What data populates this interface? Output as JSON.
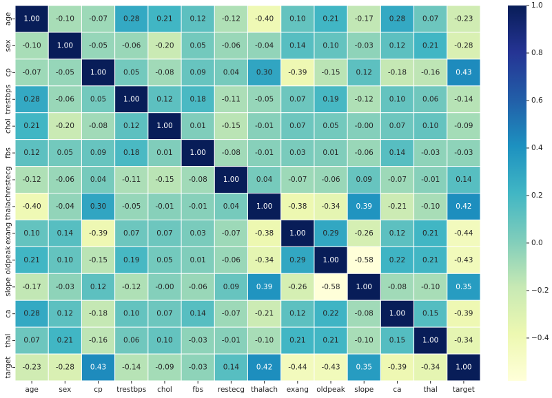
{
  "chart_data": {
    "type": "heatmap",
    "x_categories": [
      "age",
      "sex",
      "cp",
      "trestbps",
      "chol",
      "fbs",
      "restecg",
      "thalach",
      "exang",
      "oldpeak",
      "slope",
      "ca",
      "thal",
      "target"
    ],
    "y_categories": [
      "age",
      "sex",
      "cp",
      "trestbps",
      "chol",
      "fbs",
      "restecg",
      "thalach",
      "exang",
      "oldpeak",
      "slope",
      "ca",
      "thal",
      "target"
    ],
    "values": [
      [
        1,
        -0.1,
        -0.07,
        0.28,
        0.21,
        0.12,
        -0.12,
        -0.4,
        0.1,
        0.21,
        -0.17,
        0.28,
        0.07,
        -0.23
      ],
      [
        -0.1,
        1,
        -0.05,
        -0.06,
        -0.2,
        0.05,
        -0.06,
        -0.04,
        0.14,
        0.1,
        -0.03,
        0.12,
        0.21,
        -0.28
      ],
      [
        -0.07,
        -0.05,
        1,
        0.05,
        -0.08,
        0.09,
        0.04,
        0.3,
        -0.39,
        -0.15,
        0.12,
        -0.18,
        -0.16,
        0.43
      ],
      [
        0.28,
        -0.06,
        0.05,
        1,
        0.12,
        0.18,
        -0.11,
        -0.05,
        0.07,
        0.19,
        -0.12,
        0.1,
        0.06,
        -0.14
      ],
      [
        0.21,
        -0.2,
        -0.08,
        0.12,
        1,
        0.01,
        -0.15,
        -0.01,
        0.07,
        0.05,
        0,
        0.07,
        0.1,
        -0.09
      ],
      [
        0.12,
        0.05,
        0.09,
        0.18,
        0.01,
        1,
        -0.08,
        -0.01,
        0.03,
        0.01,
        -0.06,
        0.14,
        -0.03,
        -0.03
      ],
      [
        -0.12,
        -0.06,
        0.04,
        -0.11,
        -0.15,
        -0.08,
        1,
        0.04,
        -0.07,
        -0.06,
        0.09,
        -0.07,
        -0.01,
        0.14
      ],
      [
        -0.4,
        -0.04,
        0.3,
        -0.05,
        -0.01,
        -0.01,
        0.04,
        1,
        -0.38,
        -0.34,
        0.39,
        -0.21,
        -0.1,
        0.42
      ],
      [
        0.1,
        0.14,
        -0.39,
        0.07,
        0.07,
        0.03,
        -0.07,
        -0.38,
        1,
        0.29,
        -0.26,
        0.12,
        0.21,
        -0.44
      ],
      [
        0.21,
        0.1,
        -0.15,
        0.19,
        0.05,
        0.01,
        -0.06,
        -0.34,
        0.29,
        1,
        -0.58,
        0.22,
        0.21,
        -0.43
      ],
      [
        -0.17,
        -0.03,
        0.12,
        -0.12,
        0,
        -0.06,
        0.09,
        0.39,
        -0.26,
        -0.58,
        1,
        -0.08,
        -0.1,
        0.35
      ],
      [
        0.28,
        0.12,
        -0.18,
        0.1,
        0.07,
        0.14,
        -0.07,
        -0.21,
        0.12,
        0.22,
        -0.08,
        1,
        0.15,
        -0.39
      ],
      [
        0.07,
        0.21,
        -0.16,
        0.06,
        0.1,
        -0.03,
        -0.01,
        -0.1,
        0.21,
        0.21,
        -0.1,
        0.15,
        1,
        -0.34
      ],
      [
        -0.23,
        -0.28,
        0.43,
        -0.14,
        -0.09,
        -0.03,
        0.14,
        0.42,
        -0.44,
        -0.43,
        0.35,
        -0.39,
        -0.34,
        1
      ]
    ],
    "value_labels": [
      [
        "1.00",
        "-0.10",
        "-0.07",
        "0.28",
        "0.21",
        "0.12",
        "-0.12",
        "-0.40",
        "0.10",
        "0.21",
        "-0.17",
        "0.28",
        "0.07",
        "-0.23"
      ],
      [
        "-0.10",
        "1.00",
        "-0.05",
        "-0.06",
        "-0.20",
        "0.05",
        "-0.06",
        "-0.04",
        "0.14",
        "0.10",
        "-0.03",
        "0.12",
        "0.21",
        "-0.28"
      ],
      [
        "-0.07",
        "-0.05",
        "1.00",
        "0.05",
        "-0.08",
        "0.09",
        "0.04",
        "0.30",
        "-0.39",
        "-0.15",
        "0.12",
        "-0.18",
        "-0.16",
        "0.43"
      ],
      [
        "0.28",
        "-0.06",
        "0.05",
        "1.00",
        "0.12",
        "0.18",
        "-0.11",
        "-0.05",
        "0.07",
        "0.19",
        "-0.12",
        "0.10",
        "0.06",
        "-0.14"
      ],
      [
        "0.21",
        "-0.20",
        "-0.08",
        "0.12",
        "1.00",
        "0.01",
        "-0.15",
        "-0.01",
        "0.07",
        "0.05",
        "-0.00",
        "0.07",
        "0.10",
        "-0.09"
      ],
      [
        "0.12",
        "0.05",
        "0.09",
        "0.18",
        "0.01",
        "1.00",
        "-0.08",
        "-0.01",
        "0.03",
        "0.01",
        "-0.06",
        "0.14",
        "-0.03",
        "-0.03"
      ],
      [
        "-0.12",
        "-0.06",
        "0.04",
        "-0.11",
        "-0.15",
        "-0.08",
        "1.00",
        "0.04",
        "-0.07",
        "-0.06",
        "0.09",
        "-0.07",
        "-0.01",
        "0.14"
      ],
      [
        "-0.40",
        "-0.04",
        "0.30",
        "-0.05",
        "-0.01",
        "-0.01",
        "0.04",
        "1.00",
        "-0.38",
        "-0.34",
        "0.39",
        "-0.21",
        "-0.10",
        "0.42"
      ],
      [
        "0.10",
        "0.14",
        "-0.39",
        "0.07",
        "0.07",
        "0.03",
        "-0.07",
        "-0.38",
        "1.00",
        "0.29",
        "-0.26",
        "0.12",
        "0.21",
        "-0.44"
      ],
      [
        "0.21",
        "0.10",
        "-0.15",
        "0.19",
        "0.05",
        "0.01",
        "-0.06",
        "-0.34",
        "0.29",
        "1.00",
        "-0.58",
        "0.22",
        "0.21",
        "-0.43"
      ],
      [
        "-0.17",
        "-0.03",
        "0.12",
        "-0.12",
        "-0.00",
        "-0.06",
        "0.09",
        "0.39",
        "-0.26",
        "-0.58",
        "1.00",
        "-0.08",
        "-0.10",
        "0.35"
      ],
      [
        "0.28",
        "0.12",
        "-0.18",
        "0.10",
        "0.07",
        "0.14",
        "-0.07",
        "-0.21",
        "0.12",
        "0.22",
        "-0.08",
        "1.00",
        "0.15",
        "-0.39"
      ],
      [
        "0.07",
        "0.21",
        "-0.16",
        "0.06",
        "0.10",
        "-0.03",
        "-0.01",
        "-0.10",
        "0.21",
        "0.21",
        "-0.10",
        "0.15",
        "1.00",
        "-0.34"
      ],
      [
        "-0.23",
        "-0.28",
        "0.43",
        "-0.14",
        "-0.09",
        "-0.03",
        "0.14",
        "0.42",
        "-0.44",
        "-0.43",
        "0.35",
        "-0.39",
        "-0.34",
        "1.00"
      ]
    ],
    "zlim": [
      -0.58,
      1
    ],
    "colorbar_ticks": [
      {
        "value": 1,
        "label": "1.0"
      },
      {
        "value": 0.8,
        "label": "0.8"
      },
      {
        "value": 0.6,
        "label": "0.6"
      },
      {
        "value": 0.4,
        "label": "0.4"
      },
      {
        "value": 0.2,
        "label": "0.2"
      },
      {
        "value": 0,
        "label": "0.0"
      },
      {
        "value": -0.2,
        "label": "−0.2"
      },
      {
        "value": -0.4,
        "label": "−0.4"
      }
    ],
    "colorscale": [
      "#ffffd9",
      "#edf8b1",
      "#c7e9b4",
      "#7fcdbb",
      "#41b6c4",
      "#1d91c0",
      "#225ea8",
      "#253494",
      "#081d58"
    ]
  }
}
